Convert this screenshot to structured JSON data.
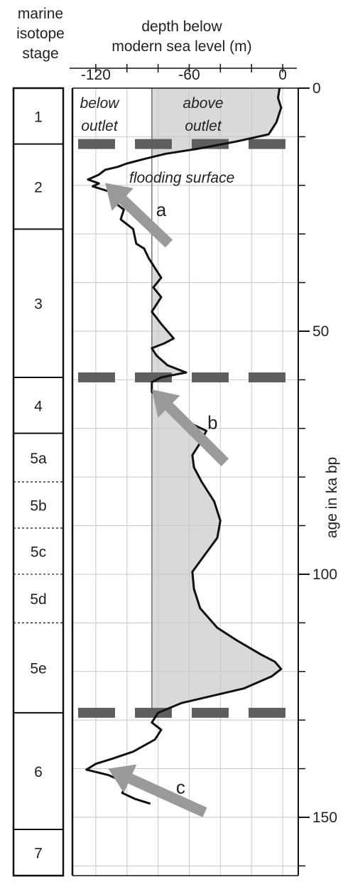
{
  "chart_data": {
    "type": "line",
    "header": {
      "stage_title": [
        "marine",
        "isotope",
        "stage"
      ],
      "depth_title": [
        "depth below",
        "modern sea level (m)"
      ],
      "right_axis_label": "age in ka bp"
    },
    "x_axis": {
      "label": "depth below modern sea level (m)",
      "range": [
        -135,
        10
      ],
      "ticks": [
        -120,
        -60,
        0
      ],
      "tick_labels": [
        "-120",
        "-60",
        "0"
      ],
      "gridlines": [
        -120,
        -100,
        -80,
        -60,
        -40,
        -20,
        0
      ],
      "outlet_depth": -84
    },
    "y_axis": {
      "label": "age in ka bp",
      "range": [
        0,
        162
      ],
      "major_ticks": [
        0,
        50,
        100,
        150
      ],
      "major_tick_labels": [
        "0",
        "50",
        "100",
        "150"
      ],
      "minor_ticks": [
        10,
        20,
        30,
        40,
        60,
        70,
        80,
        90,
        110,
        120,
        130,
        140,
        160
      ]
    },
    "series": [
      {
        "points": [
          [
            -2,
            0
          ],
          [
            -3,
            2
          ],
          [
            -1,
            4
          ],
          [
            -4,
            7
          ],
          [
            -9,
            9.5
          ],
          [
            -30,
            11
          ],
          [
            -55,
            12.5
          ],
          [
            -75,
            13.5
          ],
          [
            -88,
            14.5
          ],
          [
            -100,
            15.5
          ],
          [
            -106,
            16.2
          ],
          [
            -114,
            16.8
          ],
          [
            -118,
            17.8
          ],
          [
            -125,
            18.8
          ],
          [
            -118,
            19.6
          ],
          [
            -122,
            20.2
          ],
          [
            -112,
            21.2
          ],
          [
            -110,
            23
          ],
          [
            -102,
            25
          ],
          [
            -104,
            27
          ],
          [
            -96,
            29
          ],
          [
            -94,
            32
          ],
          [
            -89,
            33
          ],
          [
            -86,
            35
          ],
          [
            -82,
            37
          ],
          [
            -78,
            39
          ],
          [
            -83,
            41
          ],
          [
            -78,
            43
          ],
          [
            -84,
            46
          ],
          [
            -78,
            48.5
          ],
          [
            -70,
            51.5
          ],
          [
            -76,
            52.5
          ],
          [
            -84,
            53.5
          ],
          [
            -81,
            55
          ],
          [
            -74,
            57
          ],
          [
            -62,
            58.5
          ],
          [
            -78,
            59.5
          ],
          [
            -84,
            60.5
          ],
          [
            -84,
            62.5
          ],
          [
            -79,
            63.5
          ],
          [
            -71,
            66
          ],
          [
            -59,
            69
          ],
          [
            -49,
            70.5
          ],
          [
            -53,
            73
          ],
          [
            -58,
            75.5
          ],
          [
            -57,
            78
          ],
          [
            -52,
            81
          ],
          [
            -44,
            85
          ],
          [
            -40,
            89
          ],
          [
            -42,
            92.5
          ],
          [
            -50,
            96
          ],
          [
            -58,
            99.5
          ],
          [
            -57,
            103
          ],
          [
            -53,
            107
          ],
          [
            -42,
            111
          ],
          [
            -30,
            113.5
          ],
          [
            -14,
            116.5
          ],
          [
            -5,
            118
          ],
          [
            -1,
            119.5
          ],
          [
            -7,
            121
          ],
          [
            -25,
            123.5
          ],
          [
            -45,
            125
          ],
          [
            -65,
            126.5
          ],
          [
            -80,
            128.5
          ],
          [
            -84,
            130.5
          ],
          [
            -78,
            132
          ],
          [
            -82,
            134
          ],
          [
            -96,
            136.5
          ],
          [
            -110,
            138
          ],
          [
            -120,
            139
          ],
          [
            -126,
            140.2
          ],
          [
            -112,
            141.3
          ],
          [
            -100,
            143
          ],
          [
            -103,
            145
          ],
          [
            -95,
            146.2
          ],
          [
            -85,
            147.2
          ]
        ]
      }
    ],
    "region_labels": {
      "below": [
        "below",
        "outlet"
      ],
      "above": [
        "above",
        "outlet"
      ]
    },
    "dashed_lines_ages": [
      11.5,
      59.5,
      128.5
    ],
    "annotations": [
      {
        "label": "flooding surface"
      }
    ],
    "arrows": [
      {
        "label": "a",
        "tip": [
          -114,
          19.5
        ],
        "tail": [
          -73,
          32
        ]
      },
      {
        "label": "b",
        "tip": [
          -84,
          62
        ],
        "tail": [
          -37,
          77
        ]
      },
      {
        "label": "c",
        "tip": [
          -112,
          140
        ],
        "tail": [
          -50,
          149
        ]
      }
    ],
    "stages": [
      {
        "label": "1",
        "from": 0,
        "to": 11.5,
        "sub": false
      },
      {
        "label": "2",
        "from": 11.5,
        "to": 29,
        "sub": false
      },
      {
        "label": "3",
        "from": 29,
        "to": 59.5,
        "sub": false
      },
      {
        "label": "4",
        "from": 59.5,
        "to": 71,
        "sub": false
      },
      {
        "label": "5a",
        "from": 71,
        "to": 81,
        "sub": false
      },
      {
        "label": "5b",
        "from": 81,
        "to": 90.5,
        "sub": true
      },
      {
        "label": "5c",
        "from": 90.5,
        "to": 100,
        "sub": true
      },
      {
        "label": "5d",
        "from": 100,
        "to": 110,
        "sub": true
      },
      {
        "label": "5e",
        "from": 110,
        "to": 128.5,
        "sub": true
      },
      {
        "label": "6",
        "from": 128.5,
        "to": 152.5,
        "sub": false
      },
      {
        "label": "7",
        "from": 152.5,
        "to": 162,
        "sub": false
      }
    ],
    "colors": {
      "fill_above_outlet": "#d9d9d9",
      "line": "#111111",
      "dash": "#5f5f5f",
      "arrow": "#9a9a9a",
      "grid": "#c8c8c8"
    }
  }
}
